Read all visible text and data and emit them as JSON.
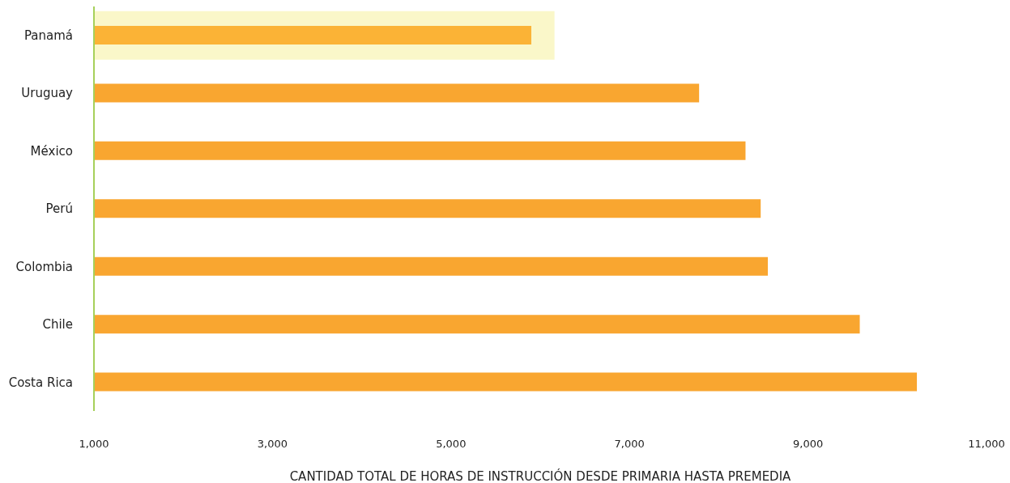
{
  "chart_data": {
    "type": "bar",
    "orientation": "horizontal",
    "xlabel": "CANTIDAD TOTAL DE HORAS DE INSTRUCCIÓN DESDE PRIMARIA HASTA PREMEDIA",
    "categories": [
      "Panamá",
      "Uruguay",
      "México",
      "Perú",
      "Colombia",
      "Chile",
      "Costa Rica"
    ],
    "values": [
      5900,
      7780,
      8300,
      8470,
      8550,
      9580,
      10220
    ],
    "colors": [
      "#fbb336",
      "#f9a630",
      "#f9a630",
      "#f9a630",
      "#f9a630",
      "#f9a630",
      "#f9a630"
    ],
    "xlim": [
      1000,
      11000
    ],
    "xticks": [
      {
        "value": 1000,
        "label": "1,000"
      },
      {
        "value": 3000,
        "label": "3,000"
      },
      {
        "value": 5000,
        "label": "5,000"
      },
      {
        "value": 7000,
        "label": "7,000"
      },
      {
        "value": 9000,
        "label": "9,000"
      },
      {
        "value": 11000,
        "label": "11,000"
      }
    ],
    "bands": [
      {
        "axis": "y",
        "from": "Panamá",
        "to": "Panamá",
        "color": "#faf7c9"
      }
    ],
    "grid": false,
    "legend": false
  }
}
